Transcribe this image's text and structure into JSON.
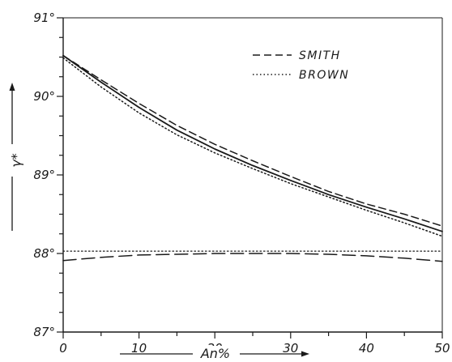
{
  "chart_data": {
    "type": "line",
    "xlabel": "An%",
    "ylabel": "γ*",
    "xlim": [
      0,
      50
    ],
    "ylim": [
      87,
      91
    ],
    "x_ticks": [
      0,
      10,
      20,
      30,
      40,
      50
    ],
    "y_ticks": [
      87,
      88,
      89,
      90,
      91
    ],
    "y_tick_labels": [
      "87°",
      "88°",
      "89°",
      "90°",
      "91°"
    ],
    "x_tick_labels": [
      "0",
      "10",
      "20",
      "30",
      "40",
      "50"
    ],
    "grid": false,
    "legend_position": "top-right",
    "series": [
      {
        "name": "",
        "style": "solid",
        "x": [
          0,
          5,
          10,
          15,
          20,
          25,
          30,
          35,
          40,
          45,
          50
        ],
        "y": [
          90.52,
          90.18,
          89.86,
          89.57,
          89.33,
          89.12,
          88.93,
          88.75,
          88.59,
          88.44,
          88.28
        ]
      },
      {
        "name": "SMITH",
        "style": "dashed",
        "x": [
          0,
          5,
          10,
          15,
          20,
          25,
          30,
          35,
          40,
          45,
          50
        ],
        "y": [
          90.52,
          90.21,
          89.91,
          89.63,
          89.39,
          89.18,
          88.98,
          88.79,
          88.63,
          88.5,
          88.35
        ]
      },
      {
        "name": "BROWN",
        "style": "dotted",
        "x": [
          0,
          5,
          10,
          15,
          20,
          25,
          30,
          35,
          40,
          45,
          50
        ],
        "y": [
          90.49,
          90.12,
          89.79,
          89.51,
          89.28,
          89.08,
          88.89,
          88.72,
          88.55,
          88.39,
          88.22
        ]
      },
      {
        "name": "",
        "style": "long-dashed",
        "x": [
          0,
          5,
          10,
          15,
          20,
          25,
          30,
          35,
          40,
          45,
          50
        ],
        "y": [
          87.91,
          87.95,
          87.98,
          87.99,
          88.0,
          88.0,
          88.0,
          87.99,
          87.97,
          87.94,
          87.9
        ]
      },
      {
        "name": "",
        "style": "dotted-horizontal",
        "x": [
          0,
          50
        ],
        "y": [
          88.03,
          88.03
        ]
      }
    ]
  },
  "colors": {
    "ink": "#1a1a1a",
    "background": "#ffffff"
  }
}
